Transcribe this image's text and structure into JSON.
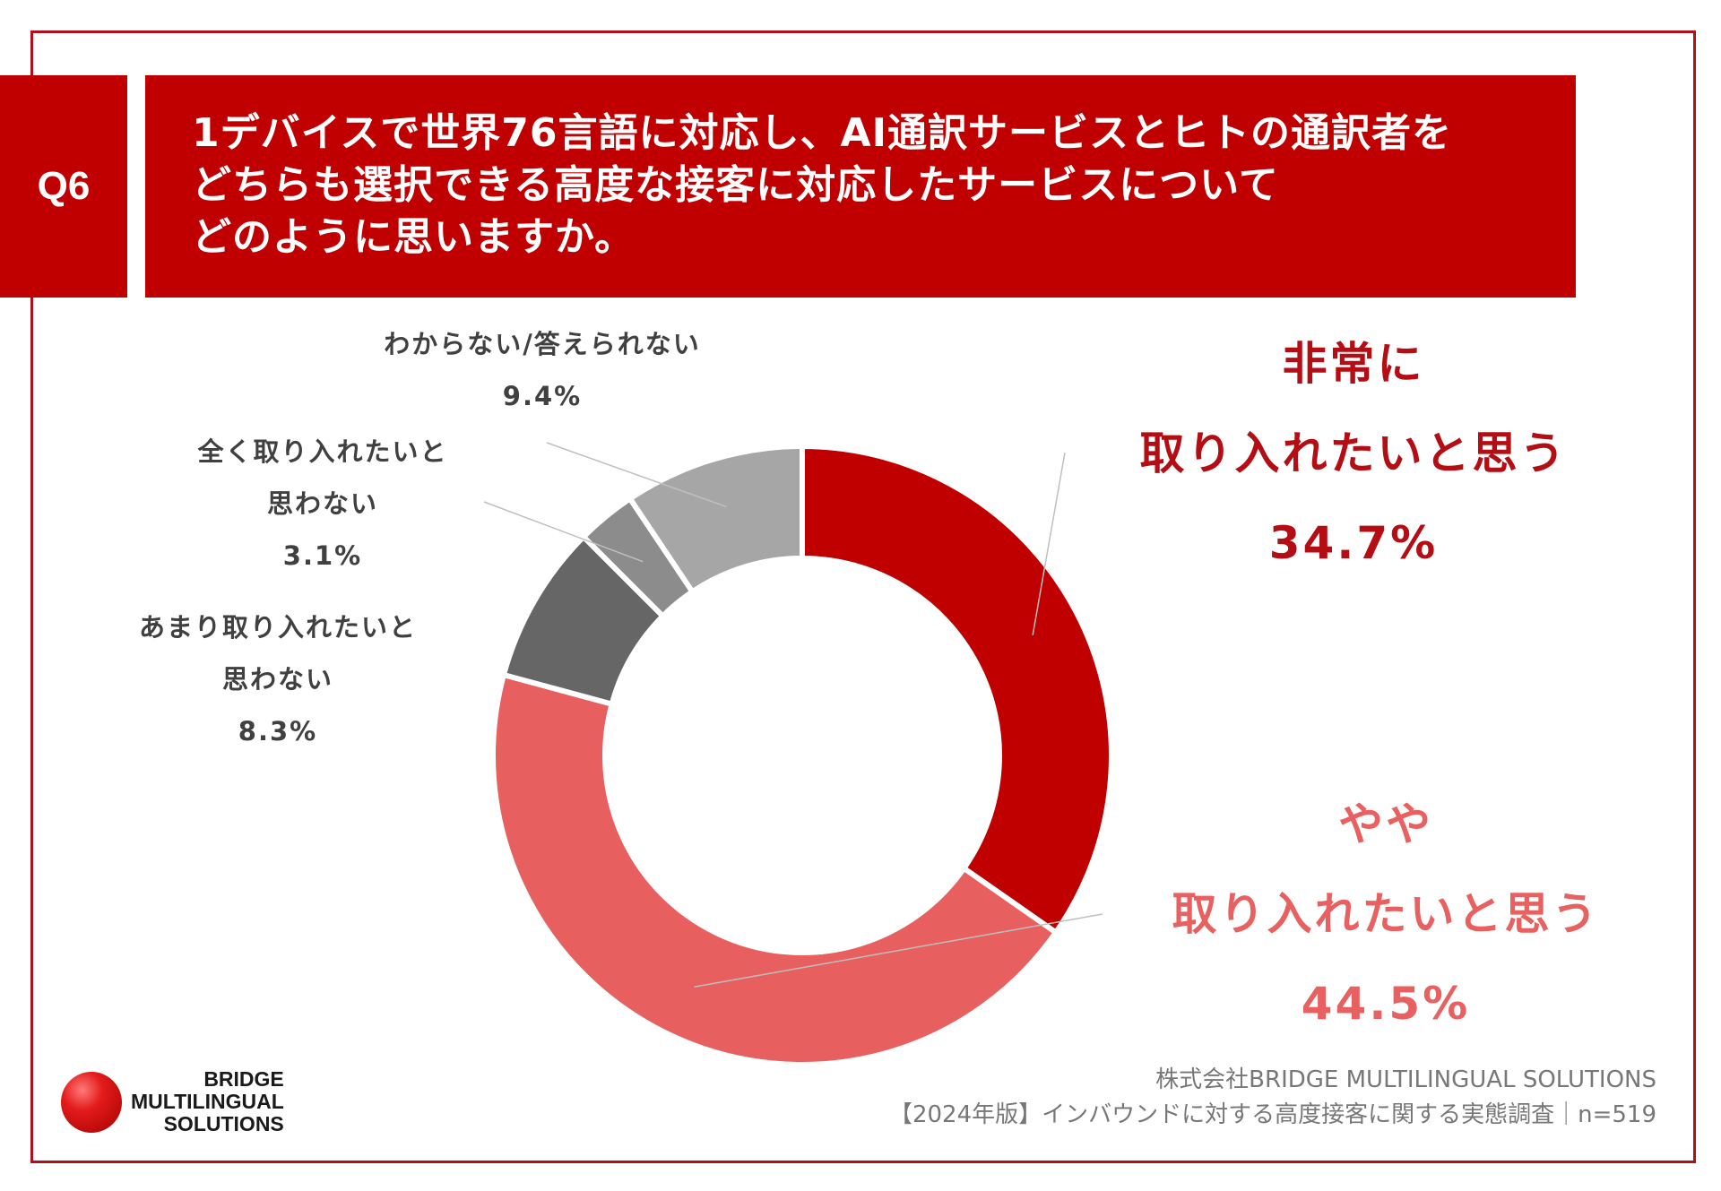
{
  "question": {
    "badge": "Q6",
    "lines": [
      "1デバイスで世界76言語に対応し、AI通訳サービスとヒトの通訳者を",
      "どちらも選択できる高度な接客に対応したサービスについて",
      "どのように思いますか。"
    ]
  },
  "chart_data": {
    "type": "pie",
    "donut": true,
    "slices": [
      {
        "lines": [
          "非常に",
          "取り入れたいと思う"
        ],
        "value": 34.7,
        "value_label": "34.7%",
        "color": "#c00000"
      },
      {
        "lines": [
          "やや",
          "取り入れたいと思う"
        ],
        "value": 44.5,
        "value_label": "44.5%",
        "color": "#e85f5f"
      },
      {
        "lines": [
          "あまり取り入れたいと",
          "思わない"
        ],
        "value": 8.3,
        "value_label": "8.3%",
        "color": "#666666"
      },
      {
        "lines": [
          "全く取り入れたいと",
          "思わない"
        ],
        "value": 3.1,
        "value_label": "3.1%",
        "color": "#8c8c8c"
      },
      {
        "lines": [
          "わからない/答えられない"
        ],
        "value": 9.4,
        "value_label": "9.4%",
        "color": "#a6a6a6"
      }
    ]
  },
  "footer": {
    "company": "株式会社BRIDGE MULTILINGUAL SOLUTIONS",
    "survey": "【2024年版】インバウンドに対する高度接客に関する実態調査｜n=519"
  },
  "logo": {
    "lines": [
      "BRIDGE",
      "MULTILINGUAL",
      "SOLUTIONS"
    ]
  }
}
